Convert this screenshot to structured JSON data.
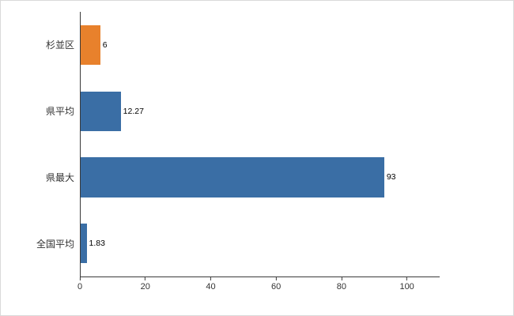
{
  "chart_data": {
    "type": "bar",
    "orientation": "horizontal",
    "title": "",
    "categories": [
      "杉並区",
      "県平均",
      "県最大",
      "全国平均"
    ],
    "values": [
      6,
      12.27,
      93,
      1.83
    ],
    "value_labels": [
      "6",
      "12.27",
      "93",
      "1.83"
    ],
    "bar_colors": [
      "#e8812c",
      "#3a6ea5",
      "#3a6ea5",
      "#3a6ea5"
    ],
    "xlabel": "",
    "ylabel": "",
    "xlim": [
      0,
      110
    ],
    "xticks": [
      0,
      20,
      40,
      60,
      80,
      100
    ],
    "grid": false,
    "legend_position": "none"
  },
  "colors": {
    "axis": "#3a3a3a",
    "tick_label": "#333333",
    "category_label": "#333333",
    "value_label": "#000000",
    "orange": "#e8812c",
    "blue": "#3a6ea5",
    "frame_border": "#d9d9d9",
    "background": "#ffffff"
  }
}
